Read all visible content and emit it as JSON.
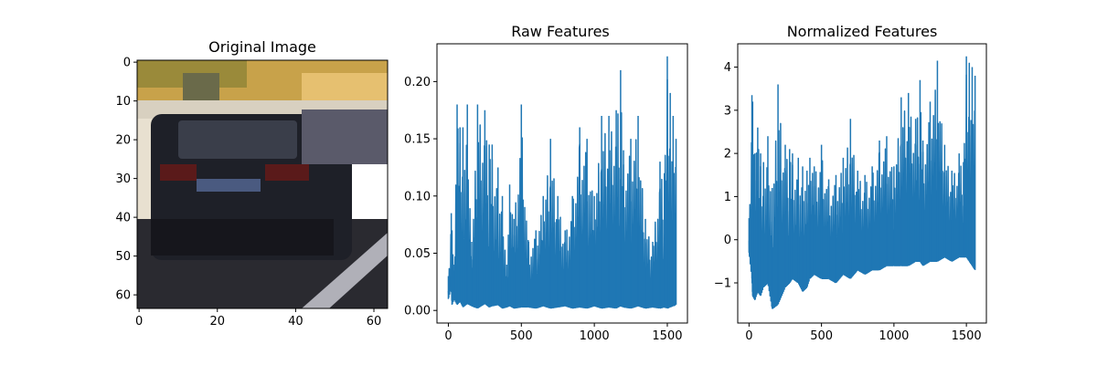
{
  "chart_data": [
    {
      "type": "image",
      "title": "Original Image",
      "xlim": [
        -0.5,
        63.5
      ],
      "ylim": [
        63.5,
        -0.5
      ],
      "xticks": [
        0,
        20,
        40,
        60
      ],
      "yticks": [
        0,
        10,
        20,
        30,
        40,
        50,
        60
      ],
      "image_description": "rear view of a dark SUV on a road, 64x64 pixels"
    },
    {
      "type": "line",
      "title": "Raw Features",
      "xlim": [
        -78,
        1638
      ],
      "ylim": [
        -0.011,
        0.233
      ],
      "xticks": [
        0,
        500,
        1000,
        1500
      ],
      "yticks": [
        0.0,
        0.05,
        0.1,
        0.15,
        0.2
      ],
      "ytick_labels": [
        "0.00",
        "0.05",
        "0.10",
        "0.15",
        "0.20"
      ],
      "series": [
        {
          "color": "#1f77b4",
          "x": [
            0,
            20,
            25,
            40,
            60,
            80,
            100,
            130,
            160,
            200,
            250,
            280,
            300,
            340,
            370,
            400,
            420,
            450,
            500,
            550,
            600,
            650,
            700,
            750,
            800,
            850,
            900,
            950,
            1000,
            1050,
            1100,
            1150,
            1180,
            1200,
            1250,
            1300,
            1350,
            1400,
            1450,
            1480,
            1500,
            1520,
            1540,
            1560
          ],
          "y": [
            0.03,
            0.085,
            0.07,
            0.04,
            0.18,
            0.16,
            0.16,
            0.18,
            0.06,
            0.18,
            0.175,
            0.145,
            0.145,
            0.125,
            0.1,
            0.04,
            0.11,
            0.08,
            0.18,
            0.06,
            0.07,
            0.1,
            0.15,
            0.1,
            0.07,
            0.1,
            0.16,
            0.15,
            0.1,
            0.17,
            0.17,
            0.175,
            0.21,
            0.14,
            0.15,
            0.17,
            0.08,
            0.06,
            0.13,
            0.12,
            0.222,
            0.19,
            0.17,
            0.15
          ],
          "floor": [
            0.01,
            0.02,
            0.005,
            0.01,
            0.005,
            0.008,
            0.003,
            0.006,
            0.004,
            0.002,
            0.006,
            0.003,
            0.004,
            0.005,
            0.002,
            0.003,
            0.004,
            0.002,
            0.003,
            0.003,
            0.002,
            0.004,
            0.002,
            0.003,
            0.004,
            0.002,
            0.003,
            0.002,
            0.004,
            0.002,
            0.003,
            0.002,
            0.004,
            0.003,
            0.002,
            0.004,
            0.002,
            0.003,
            0.002,
            0.003,
            0.002,
            0.003,
            0.004,
            0.005
          ]
        }
      ]
    },
    {
      "type": "line",
      "title": "Normalized Features",
      "xlim": [
        -78,
        1638
      ],
      "ylim": [
        -1.93,
        4.54
      ],
      "xticks": [
        0,
        500,
        1000,
        1500
      ],
      "yticks": [
        -1,
        0,
        1,
        2,
        3,
        4
      ],
      "series": [
        {
          "color": "#1f77b4",
          "x": [
            0,
            20,
            25,
            40,
            60,
            80,
            100,
            130,
            160,
            200,
            250,
            280,
            300,
            340,
            370,
            400,
            420,
            450,
            500,
            550,
            600,
            650,
            700,
            750,
            800,
            850,
            900,
            950,
            1000,
            1050,
            1100,
            1150,
            1180,
            1200,
            1250,
            1300,
            1350,
            1400,
            1450,
            1480,
            1500,
            1520,
            1540,
            1560
          ],
          "y": [
            0.5,
            3.35,
            3.2,
            2.0,
            2.6,
            2.0,
            1.8,
            2.4,
            1.2,
            3.6,
            2.2,
            2.1,
            2.0,
            1.9,
            1.7,
            1.6,
            1.9,
            1.7,
            2.2,
            1.4,
            1.5,
            1.9,
            2.8,
            1.6,
            1.5,
            1.7,
            2.3,
            2.4,
            1.7,
            3.3,
            3.4,
            2.8,
            3.7,
            2.3,
            3.2,
            4.15,
            2.2,
            1.6,
            2.0,
            1.8,
            4.25,
            4.1,
            4.0,
            3.8
          ],
          "floor": [
            -0.3,
            -0.9,
            -1.3,
            -1.4,
            -1.2,
            -1.3,
            -1.1,
            -1.0,
            -1.6,
            -1.5,
            -1.1,
            -1.0,
            -0.9,
            -1.0,
            -1.2,
            -1.1,
            -0.9,
            -0.8,
            -0.9,
            -0.9,
            -1.0,
            -0.8,
            -0.9,
            -0.7,
            -0.8,
            -0.7,
            -0.7,
            -0.6,
            -0.6,
            -0.6,
            -0.6,
            -0.5,
            -0.5,
            -0.6,
            -0.5,
            -0.5,
            -0.4,
            -0.5,
            -0.4,
            -0.4,
            -0.4,
            -0.5,
            -0.6,
            -0.7
          ]
        }
      ]
    }
  ]
}
